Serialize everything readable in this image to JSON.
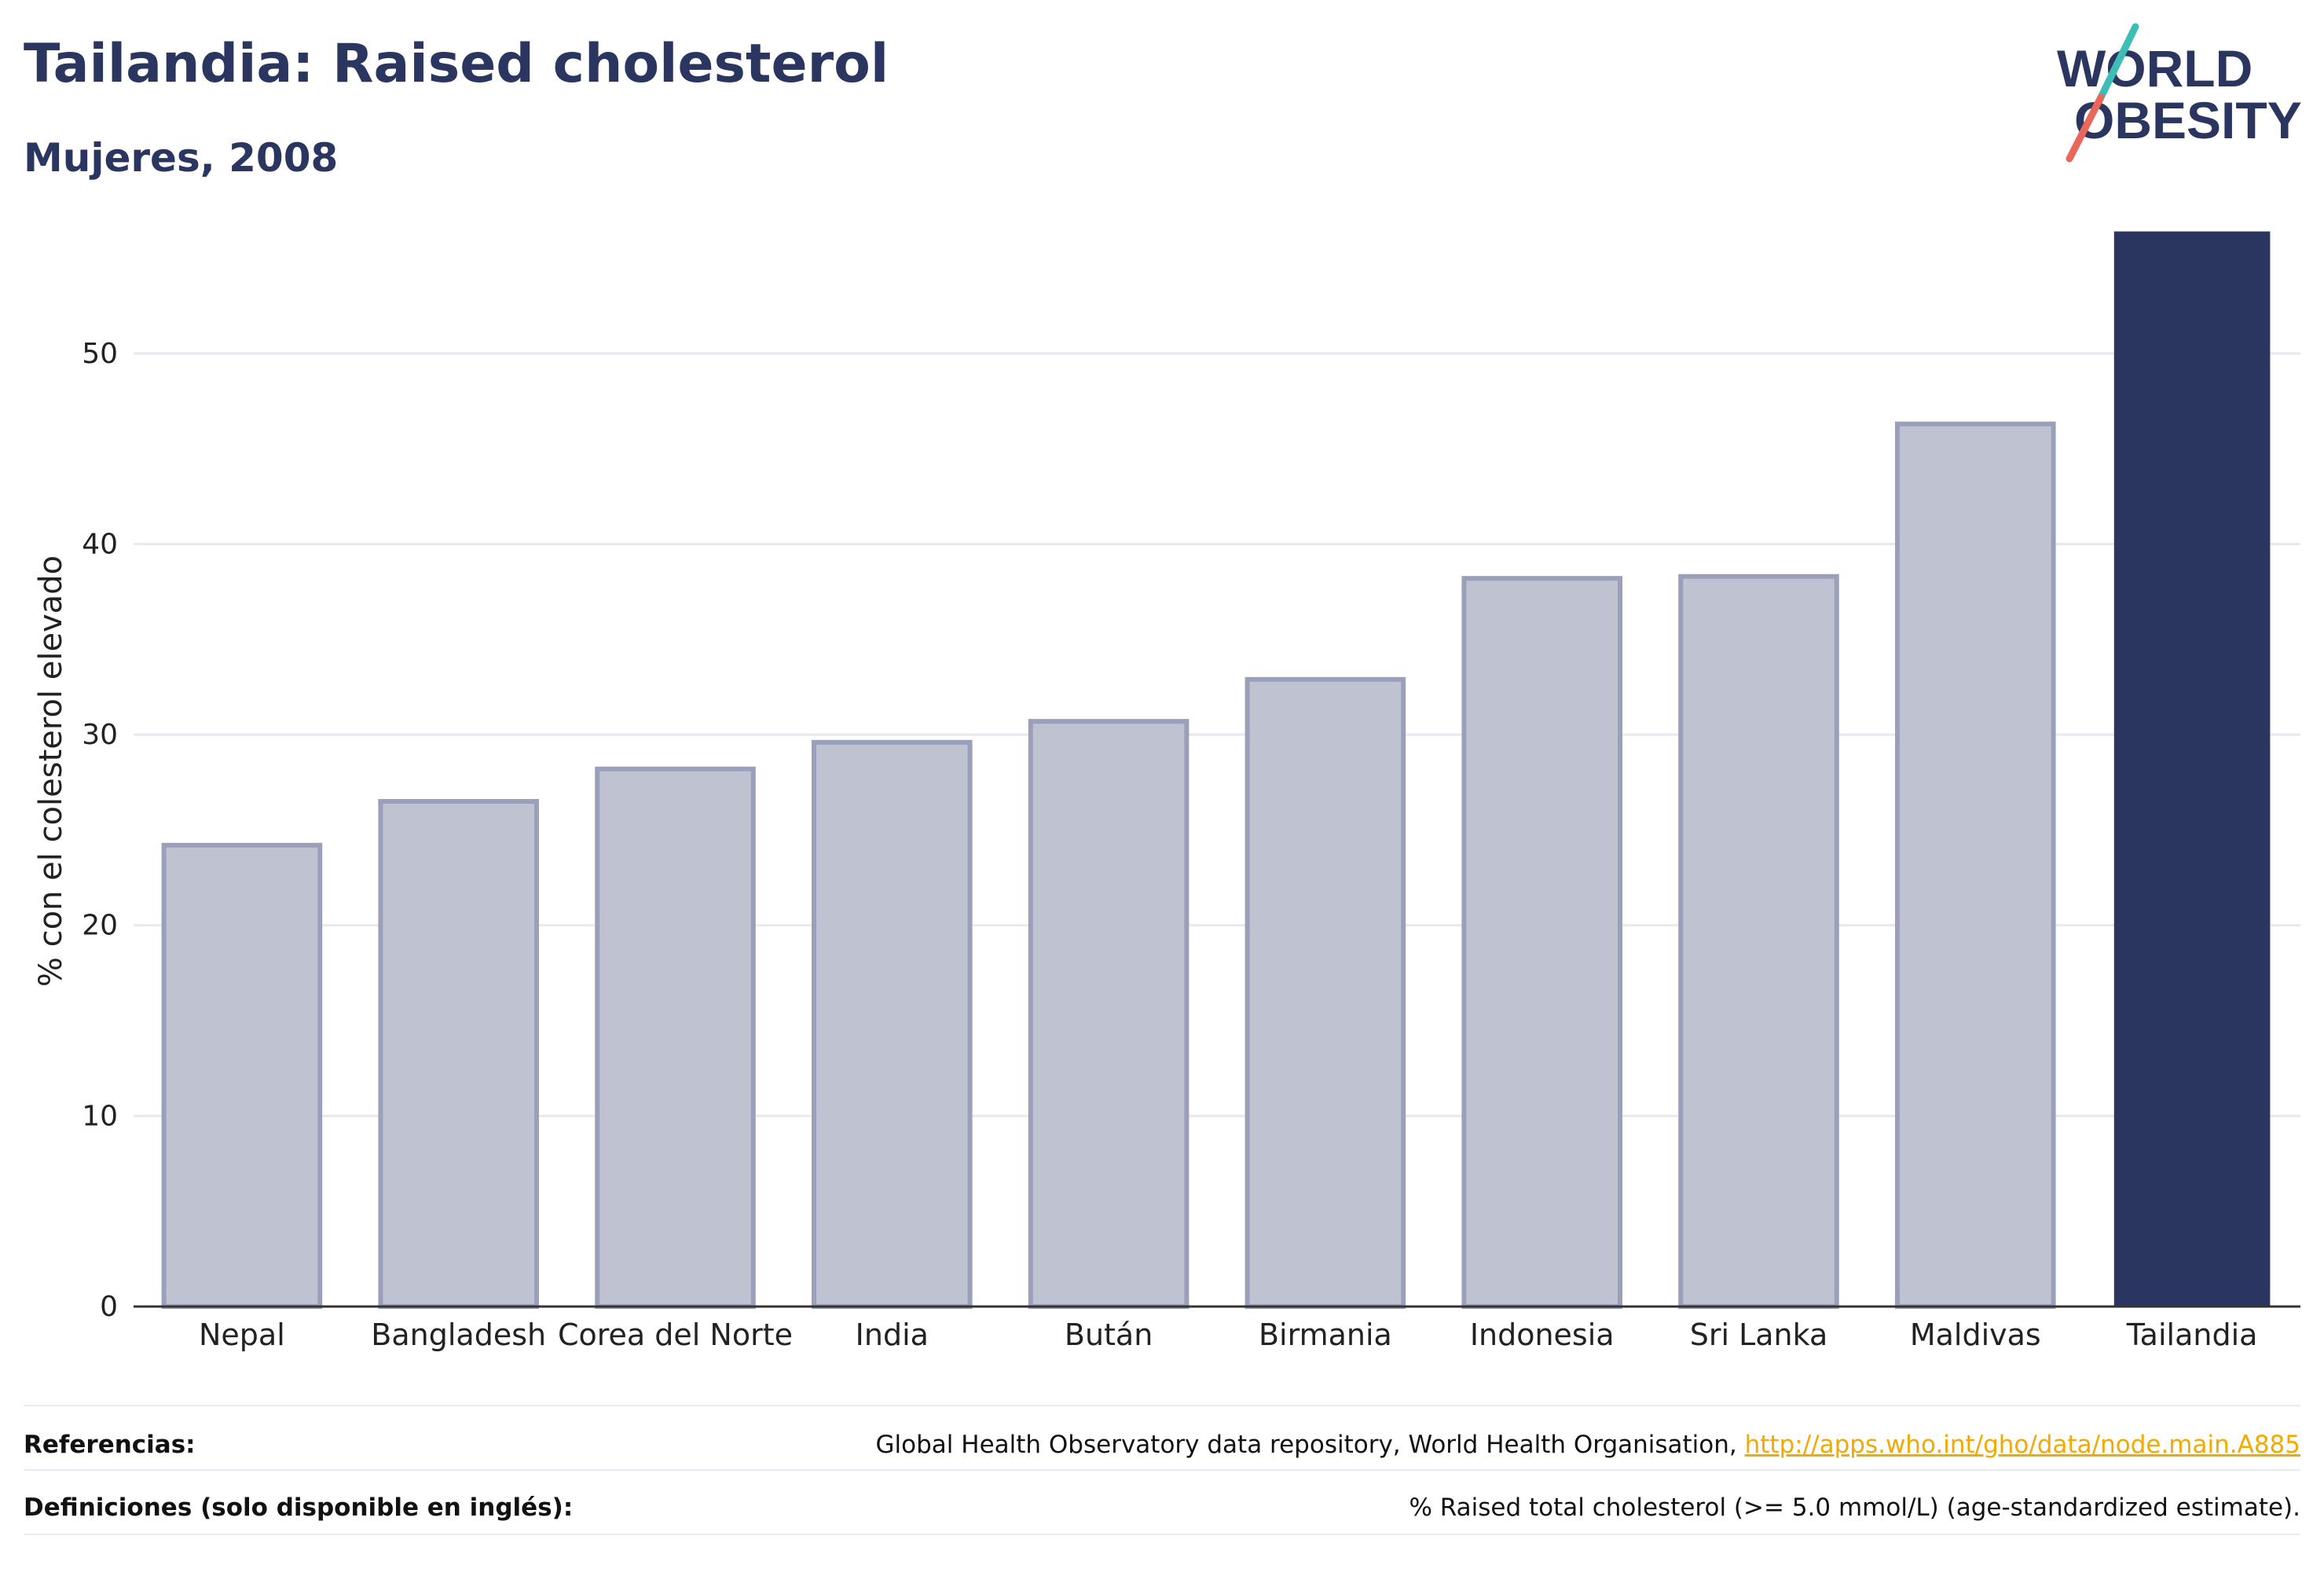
{
  "header": {
    "title": "Tailandia: Raised cholesterol",
    "subtitle": "Mujeres, 2008"
  },
  "logo": {
    "line1": "WORLD",
    "line2": "OBESITY",
    "colors": {
      "text": "#2a3560",
      "slash_top": "#3dbdb8",
      "slash_bottom": "#e8665a"
    }
  },
  "chart_data": {
    "type": "bar",
    "categories": [
      "Nepal",
      "Bangladesh",
      "Corea del Norte",
      "India",
      "Bután",
      "Birmania",
      "Indonesia",
      "Sri Lanka",
      "Maldivas",
      "Tailandia"
    ],
    "values": [
      24.2,
      26.5,
      28.2,
      29.6,
      30.7,
      32.9,
      38.2,
      38.3,
      46.3,
      56.4
    ],
    "highlight": "Tailandia",
    "ylabel": "% con el colesterol elevado",
    "xlabel": "",
    "ylim": [
      0,
      57
    ],
    "yticks": [
      0,
      10,
      20,
      30,
      40,
      50
    ],
    "grid": true,
    "colors": {
      "bar": "#bfc2d0",
      "bar_border": "#9aa0b9",
      "highlight": "#2a3560",
      "grid": "#e8e9ef",
      "axis": "#333333"
    }
  },
  "footer": {
    "references_label": "Referencias:",
    "references_text": "Global Health Observatory data repository, World Health Organisation, ",
    "references_link": "http://apps.who.int/gho/data/node.main.A885",
    "definitions_label": "Definiciones (solo disponible en inglés):",
    "definitions_text": "% Raised total cholesterol (>= 5.0 mmol/L) (age-standardized estimate)."
  }
}
